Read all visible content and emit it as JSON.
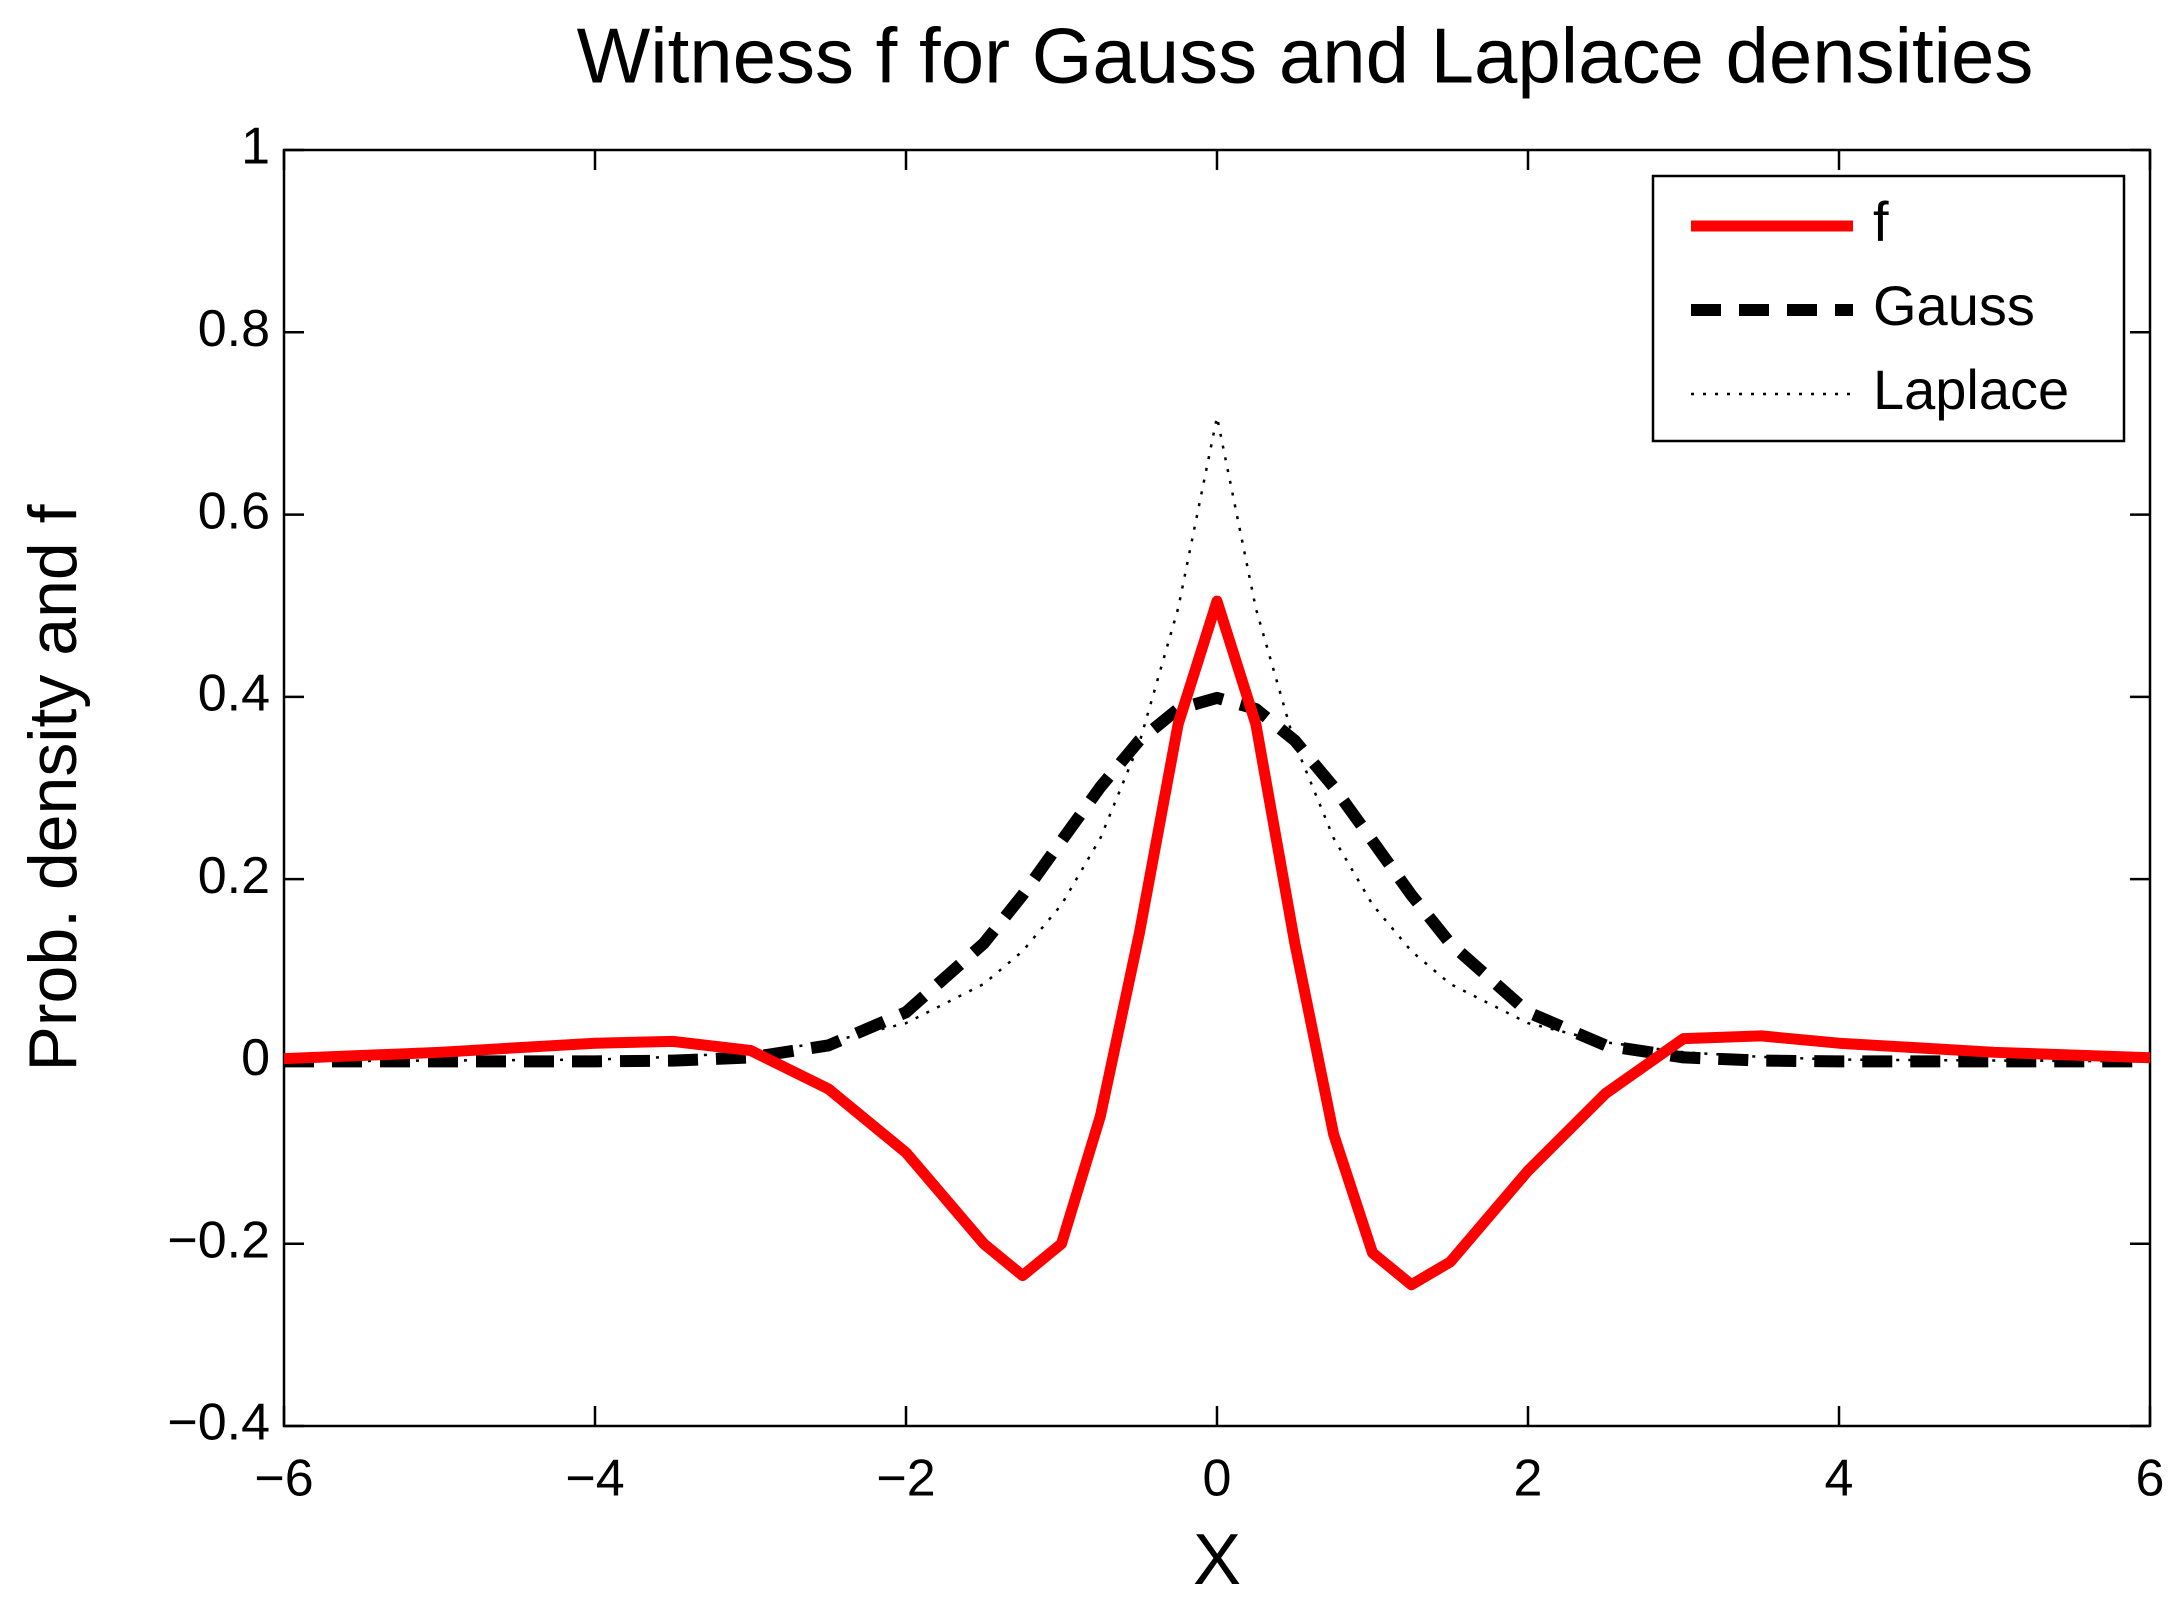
{
  "chart_data": {
    "type": "line",
    "title": "Witness f for Gauss and Laplace densities",
    "xlabel": "X",
    "ylabel": "Prob. density and f",
    "x": [
      -6,
      -5,
      -4,
      -3.5,
      -3,
      -2.5,
      -2,
      -1.5,
      -1.25,
      -1,
      -0.75,
      -0.5,
      -0.25,
      0,
      0.25,
      0.5,
      0.75,
      1,
      1.25,
      1.5,
      2,
      2.5,
      3,
      3.5,
      4,
      5,
      6
    ],
    "series": [
      {
        "name": "f",
        "color": "#ff0000",
        "style": "solid",
        "values": [
          0.003,
          0.01,
          0.02,
          0.022,
          0.012,
          -0.03,
          -0.1,
          -0.2,
          -0.235,
          -0.2,
          -0.06,
          0.14,
          0.37,
          0.505,
          0.37,
          0.13,
          -0.08,
          -0.21,
          -0.245,
          -0.22,
          -0.12,
          -0.035,
          0.025,
          0.028,
          0.02,
          0.01,
          0.004
        ]
      },
      {
        "name": "Gauss",
        "color": "#000000",
        "style": "dashed",
        "values": [
          0,
          0,
          0.0001,
          0.0009,
          0.0044,
          0.0175,
          0.054,
          0.1295,
          0.1826,
          0.242,
          0.3011,
          0.3521,
          0.3867,
          0.3989,
          0.3867,
          0.3521,
          0.3011,
          0.242,
          0.1826,
          0.1295,
          0.054,
          0.0175,
          0.0044,
          0.0009,
          0.0001,
          0,
          0
        ]
      },
      {
        "name": "Laplace",
        "color": "#000000",
        "style": "dotted",
        "values": [
          0,
          0.001,
          0.002,
          0.005,
          0.01,
          0.021,
          0.042,
          0.085,
          0.121,
          0.172,
          0.245,
          0.349,
          0.497,
          0.707,
          0.497,
          0.349,
          0.245,
          0.172,
          0.121,
          0.085,
          0.042,
          0.021,
          0.01,
          0.005,
          0.002,
          0.001,
          0
        ]
      }
    ],
    "xlim": [
      -6,
      6
    ],
    "xticks": [
      {
        "value": -6,
        "label": "−6"
      },
      {
        "value": -4,
        "label": "−4"
      },
      {
        "value": -2,
        "label": "−2"
      },
      0,
      2,
      4,
      6
    ],
    "ylim": [
      -0.4,
      1
    ],
    "yticks": [
      {
        "value": -0.4,
        "label": "−0.4"
      },
      {
        "value": -0.2,
        "label": "−0.2"
      },
      0,
      0.2,
      0.4,
      0.6,
      0.8,
      1
    ],
    "grid": false,
    "legend": "northeast"
  }
}
